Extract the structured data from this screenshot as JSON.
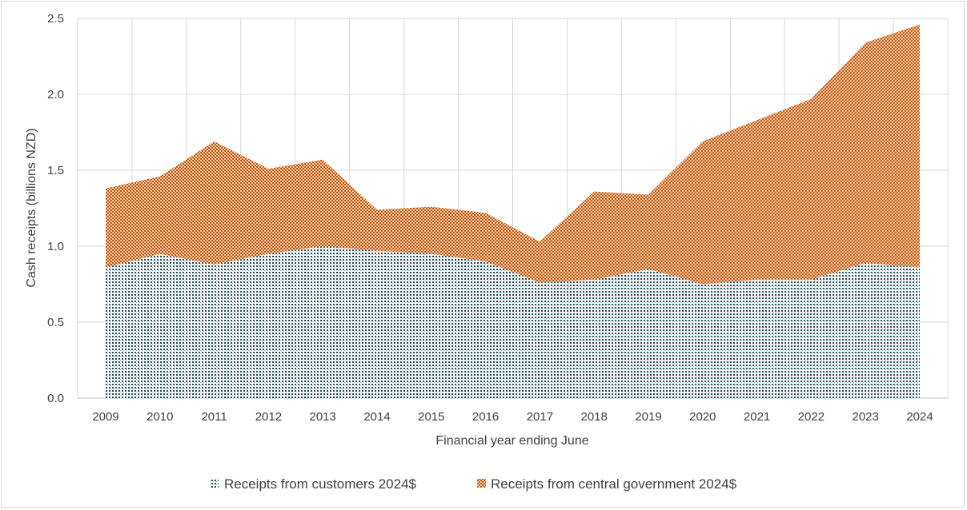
{
  "chart_data": {
    "type": "area",
    "stacked": true,
    "xlabel": "Financial year ending June",
    "ylabel": "Cash receipts (billions NZD)",
    "ylim": [
      0,
      2.5
    ],
    "y_ticks": [
      "0.0",
      "0.5",
      "1.0",
      "1.5",
      "2.0",
      "2.5"
    ],
    "categories": [
      "2009",
      "2010",
      "2011",
      "2012",
      "2013",
      "2014",
      "2015",
      "2016",
      "2017",
      "2018",
      "2019",
      "2020",
      "2021",
      "2022",
      "2023",
      "2024"
    ],
    "grid": true,
    "legend_position": "bottom",
    "series": [
      {
        "name": "Receipts from customers 2024$",
        "color": "#1f4e5f",
        "pattern": "dotted",
        "values": [
          0.86,
          0.95,
          0.88,
          0.95,
          1.0,
          0.97,
          0.95,
          0.9,
          0.76,
          0.78,
          0.85,
          0.75,
          0.78,
          0.78,
          0.89,
          0.86
        ]
      },
      {
        "name": "Receipts from central government 2024$",
        "color": "#c55a11",
        "pattern": "checkered",
        "values": [
          0.52,
          0.51,
          0.81,
          0.56,
          0.57,
          0.27,
          0.31,
          0.32,
          0.27,
          0.58,
          0.49,
          0.94,
          1.05,
          1.19,
          1.45,
          1.6
        ]
      }
    ]
  }
}
